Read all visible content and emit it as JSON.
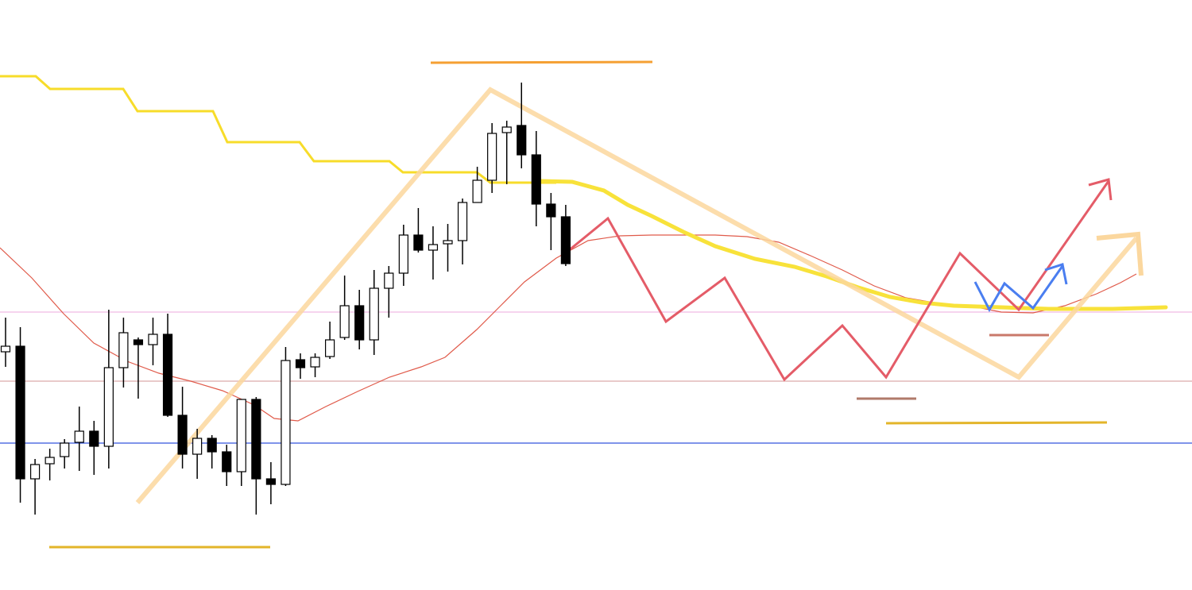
{
  "chart_data": {
    "type": "candlestick",
    "title": "",
    "xlabel": "",
    "ylabel": "",
    "grid": false,
    "colors": {
      "up_body": "#ffffff",
      "down_body": "#000000",
      "wick": "#000000"
    },
    "candles": [
      {
        "o": 300,
        "c": 307,
        "h": 343,
        "l": 281
      },
      {
        "o": 307,
        "c": 140,
        "h": 331,
        "l": 110
      },
      {
        "o": 140,
        "c": 158,
        "h": 165,
        "l": 95
      },
      {
        "o": 159,
        "c": 167,
        "h": 178,
        "l": 138
      },
      {
        "o": 168,
        "c": 185,
        "h": 190,
        "l": 153
      },
      {
        "o": 186,
        "c": 200,
        "h": 231,
        "l": 150
      },
      {
        "o": 200,
        "c": 181,
        "h": 213,
        "l": 145
      },
      {
        "o": 181,
        "c": 280,
        "h": 353,
        "l": 153
      },
      {
        "o": 280,
        "c": 324,
        "h": 343,
        "l": 255
      },
      {
        "o": 315,
        "c": 309,
        "h": 318,
        "l": 241
      },
      {
        "o": 309,
        "c": 322,
        "h": 343,
        "l": 283
      },
      {
        "o": 322,
        "c": 220,
        "h": 348,
        "l": 218
      },
      {
        "o": 220,
        "c": 171,
        "h": 256,
        "l": 153
      },
      {
        "o": 171,
        "c": 191,
        "h": 203,
        "l": 140
      },
      {
        "o": 191,
        "c": 174,
        "h": 195,
        "l": 153
      },
      {
        "o": 174,
        "c": 149,
        "h": 183,
        "l": 131
      },
      {
        "o": 149,
        "c": 240,
        "h": 240,
        "l": 131
      },
      {
        "o": 240,
        "c": 140,
        "h": 243,
        "l": 95
      },
      {
        "o": 140,
        "c": 133,
        "h": 161,
        "l": 108
      },
      {
        "o": 133,
        "c": 289,
        "h": 306,
        "l": 131
      },
      {
        "o": 290,
        "c": 280,
        "h": 298,
        "l": 266
      },
      {
        "o": 281,
        "c": 293,
        "h": 298,
        "l": 268
      },
      {
        "o": 294,
        "c": 315,
        "h": 338,
        "l": 291
      },
      {
        "o": 318,
        "c": 358,
        "h": 396,
        "l": 315
      },
      {
        "o": 358,
        "c": 315,
        "h": 378,
        "l": 303
      },
      {
        "o": 315,
        "c": 380,
        "h": 403,
        "l": 296
      },
      {
        "o": 380,
        "c": 399,
        "h": 408,
        "l": 343
      },
      {
        "o": 399,
        "c": 447,
        "h": 460,
        "l": 383
      },
      {
        "o": 447,
        "c": 428,
        "h": 481,
        "l": 425
      },
      {
        "o": 428,
        "c": 435,
        "h": 458,
        "l": 391
      },
      {
        "o": 436,
        "c": 440,
        "h": 461,
        "l": 401
      },
      {
        "o": 440,
        "c": 488,
        "h": 493,
        "l": 410
      },
      {
        "o": 488,
        "c": 516,
        "h": 533,
        "l": 488
      },
      {
        "o": 516,
        "c": 575,
        "h": 588,
        "l": 500
      },
      {
        "o": 576,
        "c": 583,
        "h": 591,
        "l": 511
      },
      {
        "o": 585,
        "c": 548,
        "h": 639,
        "l": 531
      },
      {
        "o": 548,
        "c": 486,
        "h": 578,
        "l": 458
      },
      {
        "o": 486,
        "c": 470,
        "h": 500,
        "l": 428
      },
      {
        "o": 470,
        "c": 411,
        "h": 485,
        "l": 408
      }
    ],
    "horizontal_lines": [
      {
        "level": 350,
        "color": "#f3c6e8"
      },
      {
        "level": 263,
        "color": "#e2b9b9"
      },
      {
        "level": 185,
        "color": "#3355dd"
      }
    ]
  }
}
